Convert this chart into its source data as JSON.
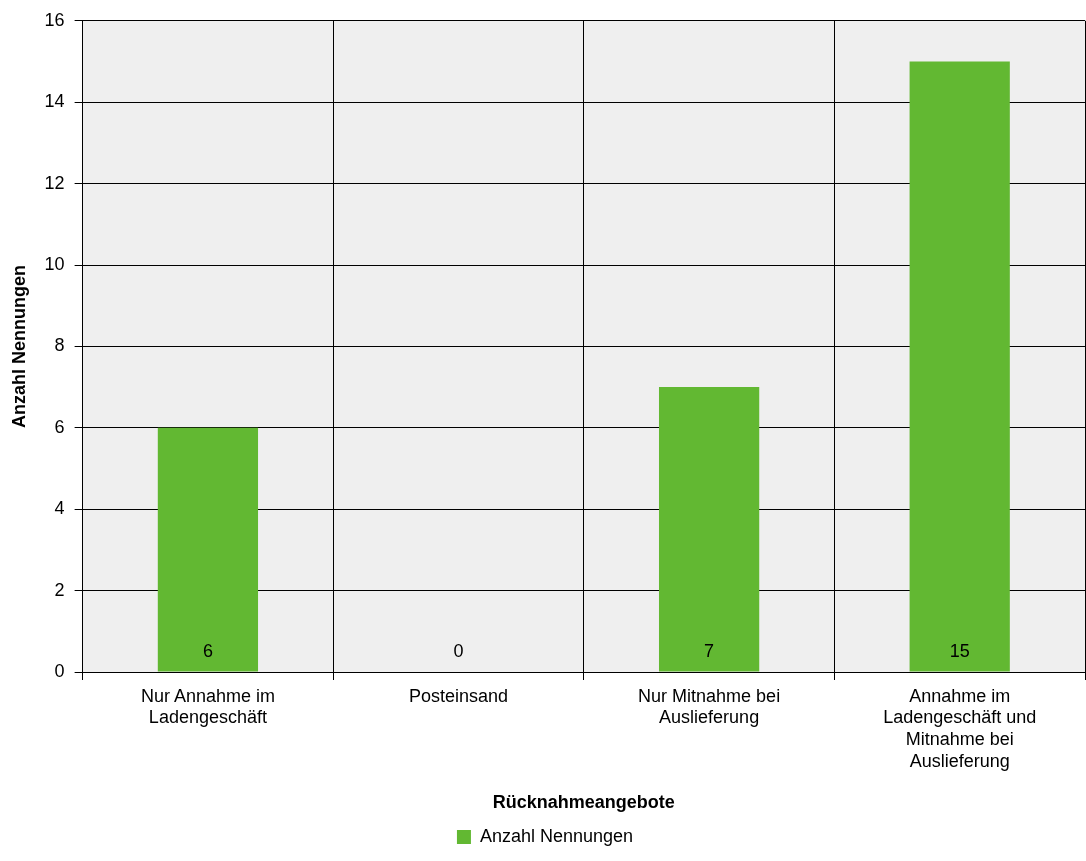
{
  "chart_data": {
    "type": "bar",
    "xlabel": "Rücknahmeangebote",
    "ylabel": "Anzahl Nennungen",
    "categories": [
      "Nur Annahme im Ladengeschäft",
      "Posteinsand",
      "Nur Mitnahme bei Auslieferung",
      "Annahme im Ladengeschäft und Mitnahme bei Auslieferung"
    ],
    "series": [
      {
        "name": "Anzahl Nennungen",
        "color": "#62b832",
        "values": [
          6,
          0,
          7,
          15
        ]
      }
    ],
    "ylim": [
      0,
      16
    ],
    "yticks": [
      0,
      2,
      4,
      6,
      8,
      10,
      12,
      14,
      16
    ],
    "grid": true,
    "legend": "bottom",
    "data_labels": true
  }
}
